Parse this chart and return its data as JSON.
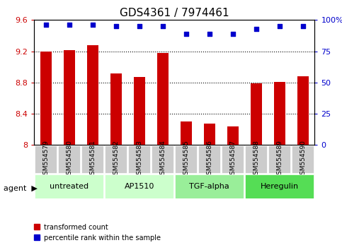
{
  "title": "GDS4361 / 7974461",
  "samples": [
    "GSM554579",
    "GSM554580",
    "GSM554581",
    "GSM554582",
    "GSM554583",
    "GSM554584",
    "GSM554585",
    "GSM554586",
    "GSM554587",
    "GSM554588",
    "GSM554589",
    "GSM554590"
  ],
  "red_values": [
    9.2,
    9.21,
    9.28,
    8.92,
    8.87,
    9.18,
    8.3,
    8.27,
    8.24,
    8.79,
    8.81,
    8.88
  ],
  "blue_values": [
    96,
    96,
    96,
    95,
    95,
    95,
    89,
    89,
    89,
    93,
    95,
    95
  ],
  "ylim_left": [
    8.0,
    9.6
  ],
  "ylim_right": [
    0,
    100
  ],
  "yticks_left": [
    8.0,
    8.4,
    8.8,
    9.2,
    9.6
  ],
  "ytick_labels_left": [
    "8",
    "8.4",
    "8.8",
    "9.2",
    "9.6"
  ],
  "yticks_right": [
    0,
    25,
    50,
    75,
    100
  ],
  "ytick_labels_right": [
    "0",
    "25",
    "50",
    "75",
    "100%"
  ],
  "groups": [
    {
      "label": "untreated",
      "start": 0,
      "end": 3,
      "color": "#ccffcc"
    },
    {
      "label": "AP1510",
      "start": 3,
      "end": 6,
      "color": "#ccffcc"
    },
    {
      "label": "TGF-alpha",
      "start": 6,
      "end": 9,
      "color": "#99ee99"
    },
    {
      "label": "Heregulin",
      "start": 9,
      "end": 12,
      "color": "#55dd55"
    }
  ],
  "bar_color": "#cc0000",
  "dot_color": "#0000cc",
  "grid_color": "#000000",
  "bg_color": "#ffffff",
  "sample_box_color": "#cccccc",
  "agent_label": "agent",
  "legend_red": "transformed count",
  "legend_blue": "percentile rank within the sample"
}
